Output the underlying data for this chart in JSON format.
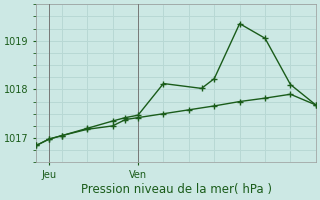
{
  "title": "",
  "xlabel": "Pression niveau de la mer( hPa )",
  "background_color": "#cce8e4",
  "grid_color": "#b8d8d4",
  "line_color": "#1a5c1a",
  "yticks": [
    1017,
    1018,
    1019
  ],
  "ylim": [
    1016.6,
    1019.6
  ],
  "xlim": [
    0,
    11
  ],
  "xtick_positions": [
    0.5,
    4.0
  ],
  "xtick_labels": [
    "Jeu",
    "Ven"
  ],
  "vline_x_jeu": 0.5,
  "vline_x_ven": 4.0,
  "series1_x": [
    0,
    0.5,
    1,
    2,
    3,
    3.5,
    4,
    5,
    6,
    7,
    8,
    9,
    10,
    11
  ],
  "series1_y": [
    1016.85,
    1016.98,
    1017.05,
    1017.18,
    1017.25,
    1017.38,
    1017.42,
    1017.5,
    1017.58,
    1017.66,
    1017.75,
    1017.82,
    1017.9,
    1017.68
  ],
  "series2_x": [
    0,
    0.5,
    1,
    2,
    3,
    3.5,
    4,
    5,
    6.5,
    7,
    8,
    9,
    10,
    11
  ],
  "series2_y": [
    1016.85,
    1016.98,
    1017.05,
    1017.2,
    1017.35,
    1017.42,
    1017.47,
    1018.12,
    1018.02,
    1018.22,
    1019.35,
    1019.05,
    1018.1,
    1017.68
  ],
  "marker_size": 4,
  "line_width": 1.0,
  "tick_fontsize": 7,
  "xlabel_fontsize": 8.5
}
